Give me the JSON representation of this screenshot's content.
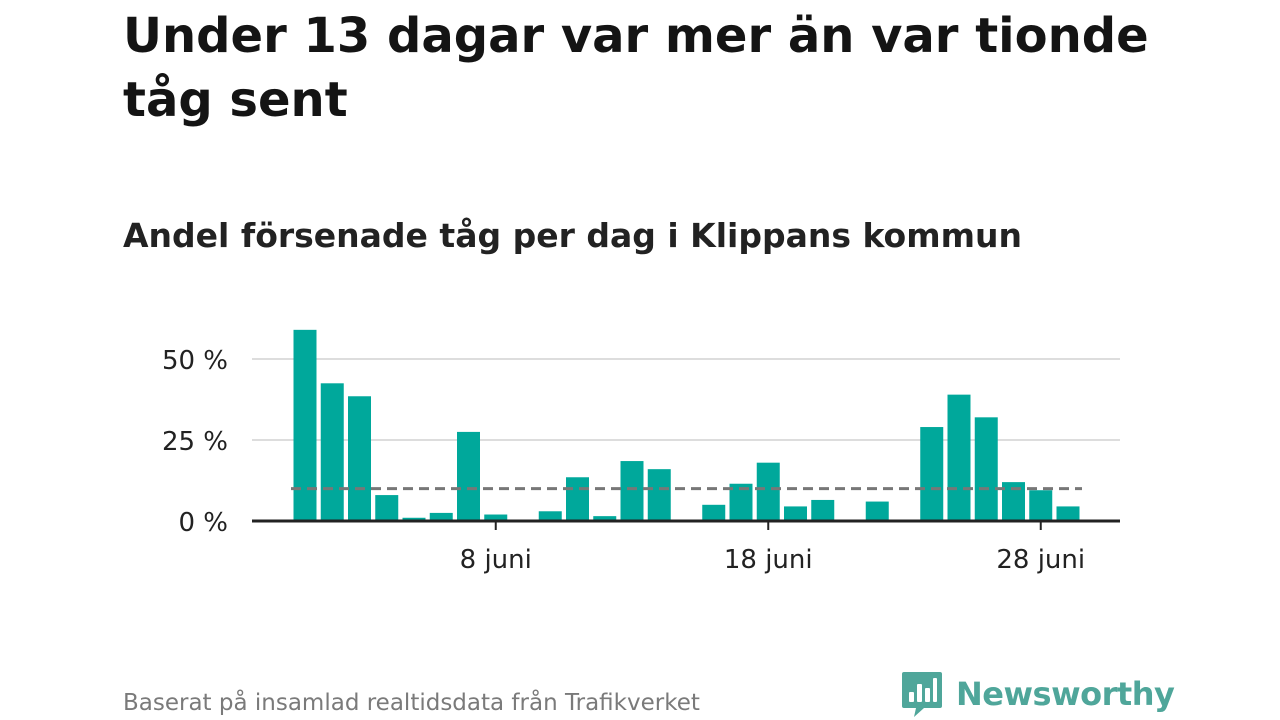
{
  "header": {
    "title": "Under 13 dagar var mer än var tionde tåg sent",
    "subtitle": "Andel försenade tåg per dag i Klippans kommun"
  },
  "footer": {
    "source": "Baserat på insamlad realtidsdata från Trafikverket",
    "logo_text": "Newsworthy",
    "logo_icon": "bar-chart-speech-bubble-icon"
  },
  "colors": {
    "bar": "#00a89b",
    "reference_line": "#777777",
    "grid": "#dddddd",
    "axis": "#222222",
    "tick_text": "#222222",
    "logo": "#4fa69a"
  },
  "chart_data": {
    "type": "bar",
    "title": "",
    "xlabel": "",
    "ylabel": "",
    "ylim": [
      0,
      60
    ],
    "y_ticks": [
      0,
      25,
      50
    ],
    "y_tick_labels": [
      "0 %",
      "25 %",
      "50 %"
    ],
    "grid": true,
    "categories": [
      "1 juni",
      "2 juni",
      "3 juni",
      "4 juni",
      "5 juni",
      "6 juni",
      "7 juni",
      "8 juni",
      "9 juni",
      "10 juni",
      "11 juni",
      "12 juni",
      "13 juni",
      "14 juni",
      "15 juni",
      "16 juni",
      "17 juni",
      "18 juni",
      "19 juni",
      "20 juni",
      "21 juni",
      "22 juni",
      "23 juni",
      "24 juni",
      "25 juni",
      "26 juni",
      "27 juni",
      "28 juni",
      "29 juni"
    ],
    "x_tick_labels": [
      {
        "category": "8 juni",
        "label": "8 juni"
      },
      {
        "category": "18 juni",
        "label": "18 juni"
      },
      {
        "category": "28 juni",
        "label": "28 juni"
      }
    ],
    "values": [
      59,
      42.5,
      38.5,
      8,
      1,
      2.5,
      27.5,
      2,
      0,
      3,
      13.5,
      1.5,
      18.5,
      16,
      0,
      5,
      11.5,
      18,
      4.5,
      6.5,
      0,
      6,
      0,
      29,
      39,
      32,
      12,
      9.5,
      4.5
    ],
    "reference_line": 10
  }
}
